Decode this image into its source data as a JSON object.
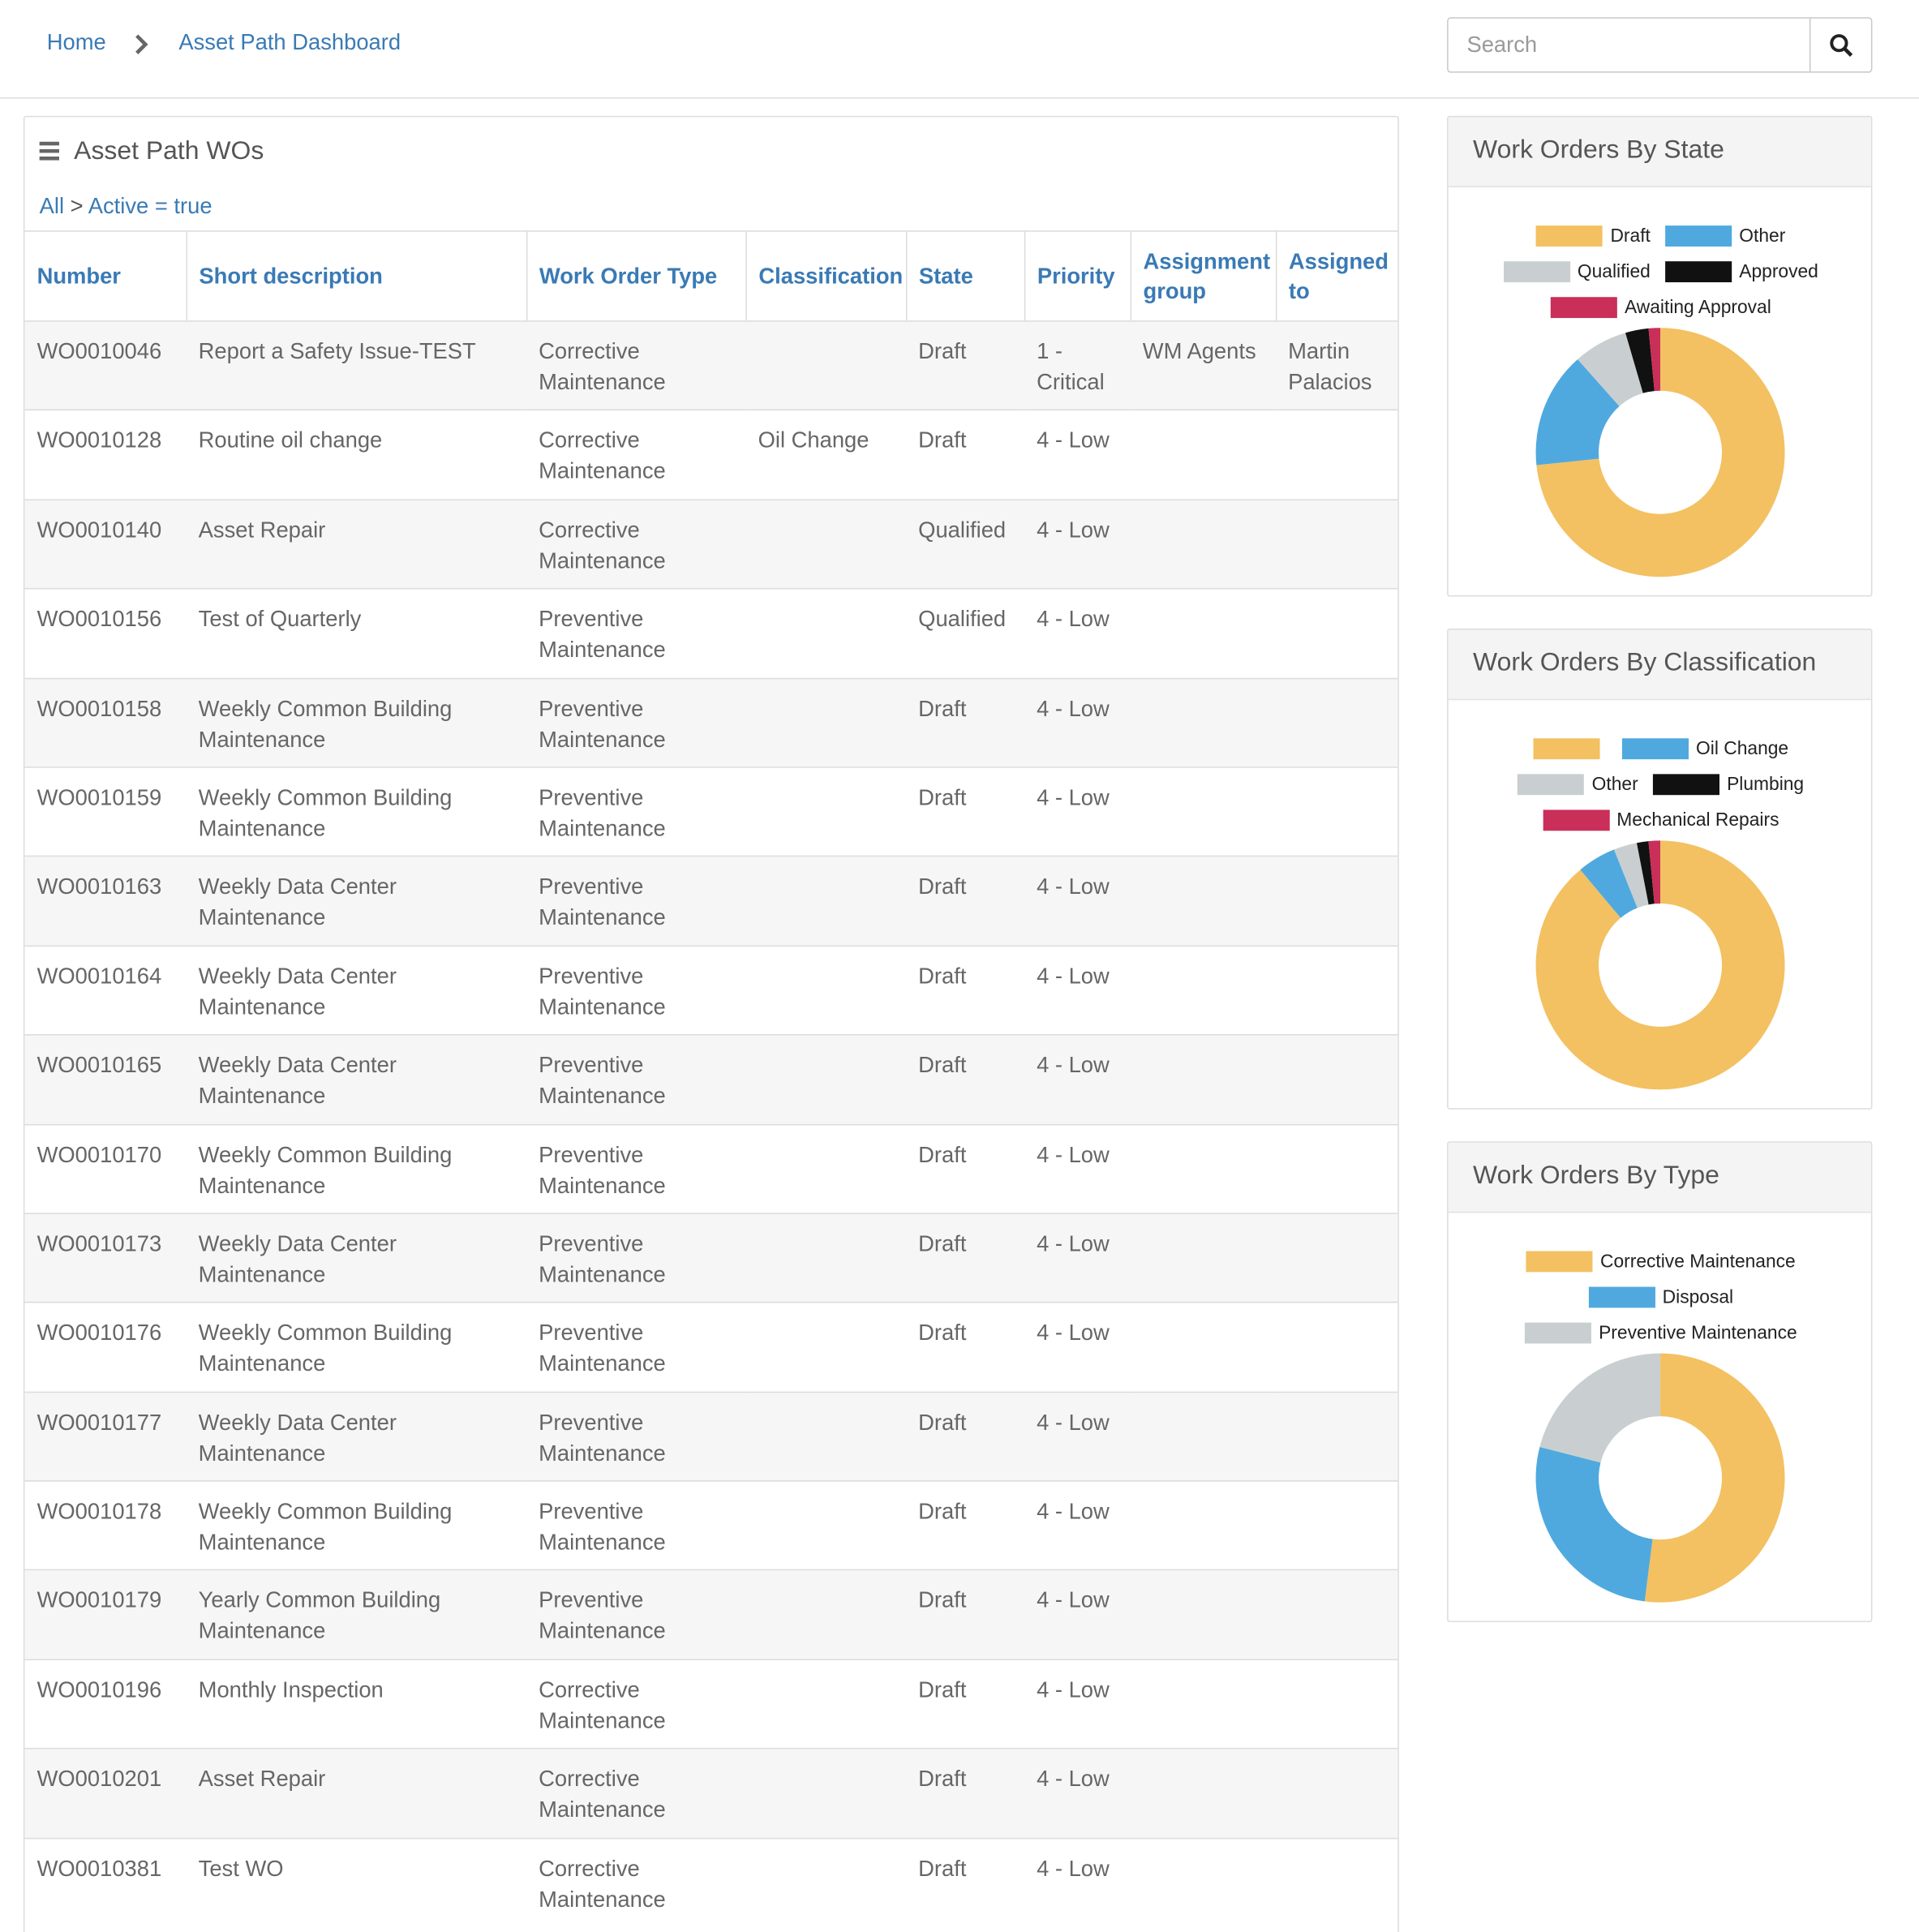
{
  "breadcrumb": {
    "home": "Home",
    "current": "Asset Path Dashboard"
  },
  "search": {
    "placeholder": "Search",
    "icon": "search-icon"
  },
  "list": {
    "title": "Asset Path WOs",
    "filter_all": "All",
    "filter_sep": " > ",
    "filter_condition": "Active = true",
    "columns": [
      "Number",
      "Short description",
      "Work Order Type",
      "Classification",
      "State",
      "Priority",
      "Assignment group",
      "Assigned to"
    ],
    "rows": [
      [
        "WO0010046",
        "Report a Safety Issue-TEST",
        "Corrective Maintenance",
        "",
        "Draft",
        "1 - Critical",
        "WM Agents",
        "Martin Palacios"
      ],
      [
        "WO0010128",
        "Routine oil change",
        "Corrective Maintenance",
        "Oil Change",
        "Draft",
        "4 - Low",
        "",
        ""
      ],
      [
        "WO0010140",
        "Asset Repair",
        "Corrective Maintenance",
        "",
        "Qualified",
        "4 - Low",
        "",
        ""
      ],
      [
        "WO0010156",
        "Test of Quarterly",
        "Preventive Maintenance",
        "",
        "Qualified",
        "4 - Low",
        "",
        ""
      ],
      [
        "WO0010158",
        "Weekly Common Building Maintenance",
        "Preventive Maintenance",
        "",
        "Draft",
        "4 - Low",
        "",
        ""
      ],
      [
        "WO0010159",
        "Weekly Common Building Maintenance",
        "Preventive Maintenance",
        "",
        "Draft",
        "4 - Low",
        "",
        ""
      ],
      [
        "WO0010163",
        "Weekly Data Center Maintenance",
        "Preventive Maintenance",
        "",
        "Draft",
        "4 - Low",
        "",
        ""
      ],
      [
        "WO0010164",
        "Weekly Data Center Maintenance",
        "Preventive Maintenance",
        "",
        "Draft",
        "4 - Low",
        "",
        ""
      ],
      [
        "WO0010165",
        "Weekly Data Center Maintenance",
        "Preventive Maintenance",
        "",
        "Draft",
        "4 - Low",
        "",
        ""
      ],
      [
        "WO0010170",
        "Weekly Common Building Maintenance",
        "Preventive Maintenance",
        "",
        "Draft",
        "4 - Low",
        "",
        ""
      ],
      [
        "WO0010173",
        "Weekly Data Center Maintenance",
        "Preventive Maintenance",
        "",
        "Draft",
        "4 - Low",
        "",
        ""
      ],
      [
        "WO0010176",
        "Weekly Common Building Maintenance",
        "Preventive Maintenance",
        "",
        "Draft",
        "4 - Low",
        "",
        ""
      ],
      [
        "WO0010177",
        "Weekly Data Center Maintenance",
        "Preventive Maintenance",
        "",
        "Draft",
        "4 - Low",
        "",
        ""
      ],
      [
        "WO0010178",
        "Weekly Common Building Maintenance",
        "Preventive Maintenance",
        "",
        "Draft",
        "4 - Low",
        "",
        ""
      ],
      [
        "WO0010179",
        "Yearly Common Building Maintenance",
        "Preventive Maintenance",
        "",
        "Draft",
        "4 - Low",
        "",
        ""
      ],
      [
        "WO0010196",
        "Monthly Inspection",
        "Corrective Maintenance",
        "",
        "Draft",
        "4 - Low",
        "",
        ""
      ],
      [
        "WO0010201",
        "Asset Repair",
        "Corrective Maintenance",
        "",
        "Draft",
        "4 - Low",
        "",
        ""
      ],
      [
        "WO0010381",
        "Test WO",
        "Corrective Maintenance",
        "",
        "Draft",
        "4 - Low",
        "",
        ""
      ]
    ]
  },
  "colors": {
    "yellow": "#f3c162",
    "blue": "#4fa9df",
    "grey": "#c9cfd0",
    "black": "#111111",
    "red": "#c92f58",
    "link": "#3a7ab5"
  },
  "charts": [
    {
      "title": "Work Orders By State",
      "legend_rows": [
        [
          "Draft",
          "Other"
        ],
        [
          "Qualified",
          "Approved"
        ],
        [
          "Awaiting Approval"
        ]
      ],
      "chart_data": {
        "type": "pie",
        "series": [
          {
            "name": "Draft",
            "value": 73,
            "color": "#f3c162"
          },
          {
            "name": "Other",
            "value": 15,
            "color": "#4fa9df"
          },
          {
            "name": "Qualified",
            "value": 7,
            "color": "#c9cfd0"
          },
          {
            "name": "Approved",
            "value": 3,
            "color": "#111111"
          },
          {
            "name": "Awaiting Approval",
            "value": 1.5,
            "color": "#c92f58"
          }
        ]
      }
    },
    {
      "title": "Work Orders By Classification",
      "legend_rows": [
        [
          "",
          "Oil Change"
        ],
        [
          "Other",
          "Plumbing"
        ],
        [
          "Mechanical Repairs"
        ]
      ],
      "chart_data": {
        "type": "pie",
        "series": [
          {
            "name": "",
            "value": 88,
            "color": "#f3c162"
          },
          {
            "name": "Oil Change",
            "value": 5,
            "color": "#4fa9df"
          },
          {
            "name": "Other",
            "value": 3,
            "color": "#c9cfd0"
          },
          {
            "name": "Plumbing",
            "value": 1.5,
            "color": "#111111"
          },
          {
            "name": "Mechanical Repairs",
            "value": 1.5,
            "color": "#c92f58"
          }
        ]
      }
    },
    {
      "title": "Work Orders By Type",
      "legend_rows": [
        [
          "Corrective Maintenance"
        ],
        [
          "Disposal"
        ],
        [
          "Preventive Maintenance"
        ]
      ],
      "chart_data": {
        "type": "pie",
        "series": [
          {
            "name": "Corrective Maintenance",
            "value": 52,
            "color": "#f3c162"
          },
          {
            "name": "Disposal",
            "value": 27,
            "color": "#4fa9df"
          },
          {
            "name": "Preventive Maintenance",
            "value": 21,
            "color": "#c9cfd0"
          }
        ]
      }
    }
  ]
}
